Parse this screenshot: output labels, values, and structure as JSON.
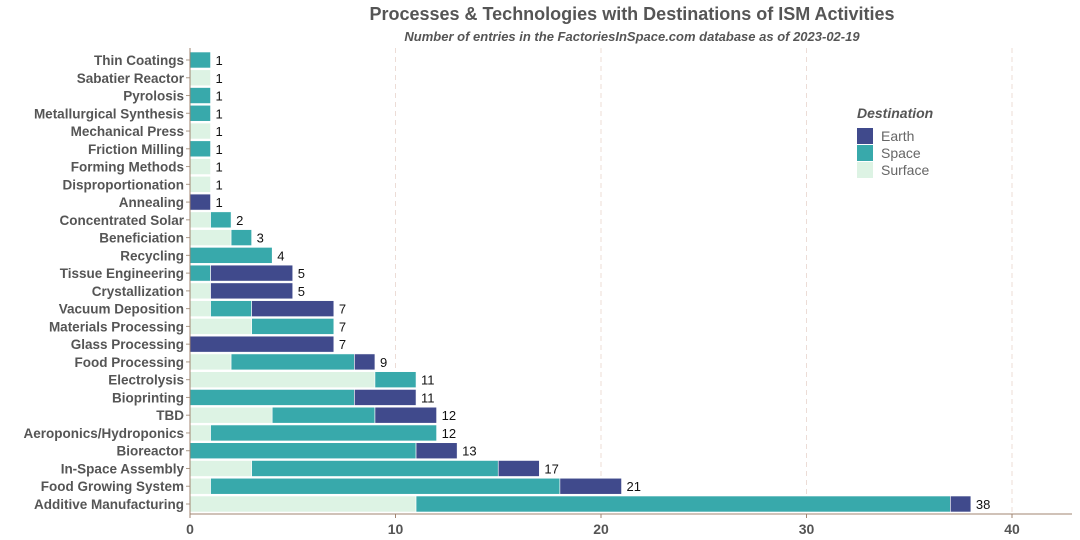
{
  "chart_data": {
    "type": "bar",
    "orientation": "horizontal",
    "stacked": true,
    "title": "Processes & Technologies with Destinations of ISM Activities",
    "subtitle": "Number of entries in the FactoriesInSpace.com database as of 2023-02-19",
    "xlabel": "",
    "ylabel": "",
    "xlim": [
      0,
      43
    ],
    "xticks": [
      0,
      10,
      20,
      30,
      40
    ],
    "grid": "vertical dashed",
    "legend": {
      "title": "Destination",
      "position": "top-right"
    },
    "categories": [
      "Thin Coatings",
      "Sabatier Reactor",
      "Pyrolosis",
      "Metallurgical Synthesis",
      "Mechanical Press",
      "Friction Milling",
      "Forming Methods",
      "Disproportionation",
      "Annealing",
      "Concentrated Solar",
      "Beneficiation",
      "Recycling",
      "Tissue Engineering",
      "Crystallization",
      "Vacuum Deposition",
      "Materials Processing",
      "Glass Processing",
      "Food Processing",
      "Electrolysis",
      "Bioprinting",
      "TBD",
      "Aeroponics/Hydroponics",
      "Bioreactor",
      "In-Space Assembly",
      "Food Growing System",
      "Additive Manufacturing"
    ],
    "series": [
      {
        "name": "Surface",
        "color": "#ddf3e4",
        "values": [
          0,
          1,
          0,
          0,
          1,
          0,
          1,
          1,
          0,
          1,
          2,
          0,
          0,
          1,
          1,
          3,
          0,
          2,
          9,
          0,
          4,
          1,
          0,
          3,
          1,
          11
        ]
      },
      {
        "name": "Space",
        "color": "#38a9ab",
        "values": [
          1,
          0,
          1,
          1,
          0,
          1,
          0,
          0,
          0,
          1,
          1,
          4,
          1,
          0,
          2,
          4,
          0,
          6,
          2,
          8,
          5,
          11,
          11,
          12,
          17,
          26
        ]
      },
      {
        "name": "Earth",
        "color": "#404a8c",
        "values": [
          0,
          0,
          0,
          0,
          0,
          0,
          0,
          0,
          1,
          0,
          0,
          0,
          4,
          4,
          4,
          0,
          7,
          1,
          0,
          3,
          3,
          0,
          2,
          2,
          3,
          1
        ]
      }
    ],
    "legend_order": [
      "Earth",
      "Space",
      "Surface"
    ],
    "totals": [
      1,
      1,
      1,
      1,
      1,
      1,
      1,
      1,
      1,
      2,
      3,
      4,
      5,
      5,
      7,
      7,
      7,
      9,
      11,
      11,
      12,
      12,
      13,
      17,
      21,
      38
    ]
  }
}
